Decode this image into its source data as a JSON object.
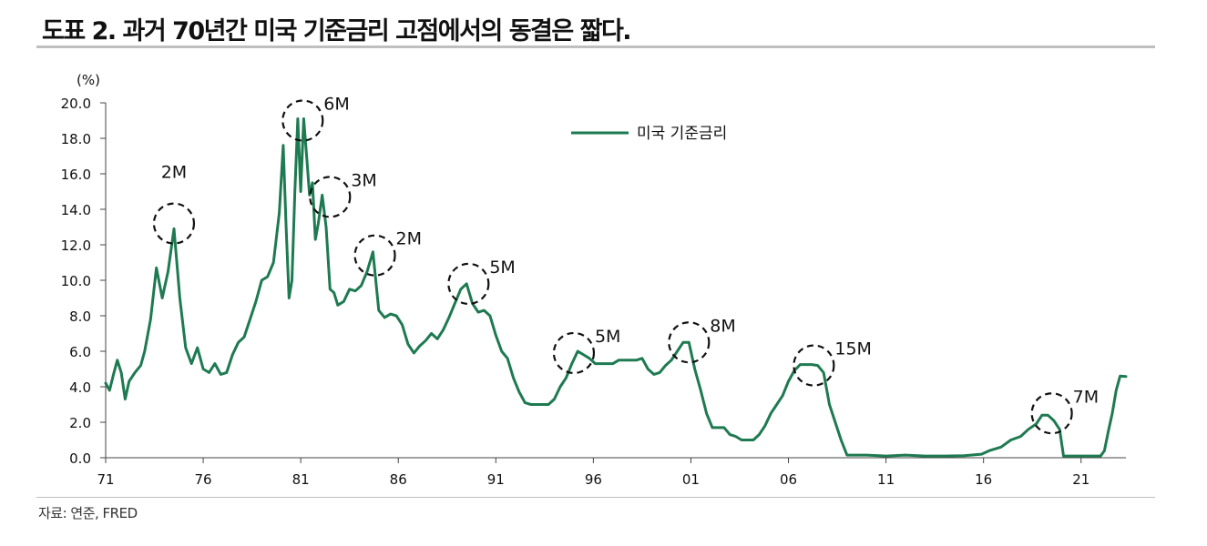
{
  "title": "도표 2. 과거 70년간 미국 기준금리 고점에서의 동결은 짧다.",
  "source": "자료: 연준, FRED",
  "chart_data": {
    "type": "line",
    "unit_label": "(%)",
    "ylim": [
      0,
      20
    ],
    "yticks": [
      "0.0",
      "2.0",
      "4.0",
      "6.0",
      "8.0",
      "10.0",
      "12.0",
      "14.0",
      "16.0",
      "18.0",
      "20.0"
    ],
    "xlim": [
      1971,
      2023.3
    ],
    "xticks": [
      {
        "label": "71",
        "year": 1971
      },
      {
        "label": "76",
        "year": 1976
      },
      {
        "label": "81",
        "year": 1981
      },
      {
        "label": "86",
        "year": 1986
      },
      {
        "label": "91",
        "year": 1991
      },
      {
        "label": "96",
        "year": 1996
      },
      {
        "label": "01",
        "year": 2001
      },
      {
        "label": "06",
        "year": 2006
      },
      {
        "label": "11",
        "year": 2011
      },
      {
        "label": "16",
        "year": 2016
      },
      {
        "label": "21",
        "year": 2021
      }
    ],
    "legend": "top-right",
    "color": "#1e7a50",
    "series": [
      {
        "name": "미국 기준금리",
        "x": [
          1971.0,
          1971.2,
          1971.4,
          1971.6,
          1971.8,
          1972.0,
          1972.2,
          1972.5,
          1972.8,
          1973.0,
          1973.3,
          1973.6,
          1973.9,
          1974.2,
          1974.5,
          1974.8,
          1975.1,
          1975.4,
          1975.7,
          1976.0,
          1976.3,
          1976.6,
          1976.9,
          1977.2,
          1977.5,
          1977.8,
          1978.1,
          1978.4,
          1978.7,
          1979.0,
          1979.3,
          1979.6,
          1979.9,
          1980.1,
          1980.25,
          1980.4,
          1980.55,
          1980.7,
          1980.85,
          1981.0,
          1981.15,
          1981.3,
          1981.45,
          1981.6,
          1981.75,
          1981.9,
          1982.1,
          1982.3,
          1982.5,
          1982.7,
          1982.9,
          1983.2,
          1983.5,
          1983.8,
          1984.1,
          1984.4,
          1984.7,
          1985.0,
          1985.3,
          1985.6,
          1985.9,
          1986.2,
          1986.5,
          1986.8,
          1987.1,
          1987.4,
          1987.7,
          1988.0,
          1988.3,
          1988.6,
          1988.9,
          1989.2,
          1989.5,
          1989.8,
          1990.1,
          1990.4,
          1990.7,
          1991.0,
          1991.3,
          1991.6,
          1991.9,
          1992.2,
          1992.5,
          1992.8,
          1993.1,
          1993.4,
          1993.7,
          1994.0,
          1994.3,
          1994.6,
          1994.9,
          1995.2,
          1995.5,
          1995.8,
          1996.1,
          1996.4,
          1996.7,
          1997.0,
          1997.3,
          1997.6,
          1997.9,
          1998.2,
          1998.5,
          1998.8,
          1999.1,
          1999.4,
          1999.7,
          2000.0,
          2000.3,
          2000.6,
          2000.9,
          2001.2,
          2001.5,
          2001.8,
          2002.1,
          2002.4,
          2002.7,
          2003.0,
          2003.3,
          2003.6,
          2003.9,
          2004.2,
          2004.5,
          2004.8,
          2005.1,
          2005.4,
          2005.7,
          2006.0,
          2006.3,
          2006.6,
          2006.9,
          2007.2,
          2007.5,
          2007.8,
          2008.1,
          2008.4,
          2008.7,
          2009.0,
          2009.5,
          2010.0,
          2011.0,
          2012.0,
          2013.0,
          2014.0,
          2015.0,
          2015.9,
          2016.3,
          2016.9,
          2017.4,
          2017.9,
          2018.3,
          2018.7,
          2019.0,
          2019.3,
          2019.6,
          2019.9,
          2020.1,
          2020.3,
          2021.0,
          2022.0,
          2022.2,
          2022.4,
          2022.6,
          2022.8,
          2023.0,
          2023.3
        ],
        "y": [
          4.2,
          3.8,
          4.7,
          5.5,
          4.8,
          3.3,
          4.3,
          4.8,
          5.2,
          6.0,
          7.8,
          10.7,
          9.0,
          10.5,
          12.9,
          9.0,
          6.2,
          5.3,
          6.2,
          5.0,
          4.8,
          5.3,
          4.7,
          4.8,
          5.8,
          6.5,
          6.8,
          7.8,
          8.8,
          10.0,
          10.2,
          11.0,
          13.8,
          17.6,
          13.0,
          9.0,
          10.0,
          15.0,
          19.1,
          15.0,
          19.1,
          17.0,
          14.8,
          15.5,
          12.3,
          13.2,
          14.8,
          13.0,
          9.5,
          9.3,
          8.6,
          8.8,
          9.5,
          9.4,
          9.7,
          10.5,
          11.6,
          8.3,
          7.9,
          8.1,
          8.0,
          7.5,
          6.4,
          5.9,
          6.3,
          6.6,
          7.0,
          6.7,
          7.2,
          7.9,
          8.7,
          9.5,
          9.8,
          8.7,
          8.2,
          8.3,
          8.0,
          6.9,
          6.0,
          5.6,
          4.5,
          3.7,
          3.1,
          3.0,
          3.0,
          3.0,
          3.0,
          3.3,
          4.0,
          4.5,
          5.3,
          6.0,
          5.8,
          5.6,
          5.3,
          5.3,
          5.3,
          5.3,
          5.5,
          5.5,
          5.5,
          5.5,
          5.6,
          5.0,
          4.7,
          4.8,
          5.2,
          5.5,
          6.0,
          6.5,
          6.5,
          5.0,
          3.8,
          2.5,
          1.7,
          1.7,
          1.7,
          1.3,
          1.2,
          1.0,
          1.0,
          1.0,
          1.3,
          1.8,
          2.5,
          3.0,
          3.5,
          4.3,
          4.9,
          5.25,
          5.25,
          5.25,
          5.2,
          4.8,
          3.0,
          2.0,
          1.0,
          0.15,
          0.15,
          0.15,
          0.1,
          0.15,
          0.1,
          0.1,
          0.12,
          0.2,
          0.4,
          0.6,
          1.0,
          1.2,
          1.6,
          1.9,
          2.4,
          2.4,
          2.1,
          1.6,
          0.1,
          0.1,
          0.1,
          0.1,
          0.4,
          1.5,
          2.5,
          3.8,
          4.6,
          4.58
        ]
      }
    ],
    "annotations": [
      {
        "label": "2M",
        "x": 1974.5,
        "y": 13.2
      },
      {
        "label": "6M",
        "x": 1981.1,
        "y": 19.0
      },
      {
        "label": "3M",
        "x": 1982.5,
        "y": 14.7
      },
      {
        "label": "2M",
        "x": 1984.8,
        "y": 11.4
      },
      {
        "label": "5M",
        "x": 1989.6,
        "y": 9.8
      },
      {
        "label": "5M",
        "x": 1995.0,
        "y": 5.9
      },
      {
        "label": "8M",
        "x": 2000.9,
        "y": 6.5
      },
      {
        "label": "15M",
        "x": 2007.3,
        "y": 5.2
      },
      {
        "label": "7M",
        "x": 2019.5,
        "y": 2.5
      }
    ]
  }
}
